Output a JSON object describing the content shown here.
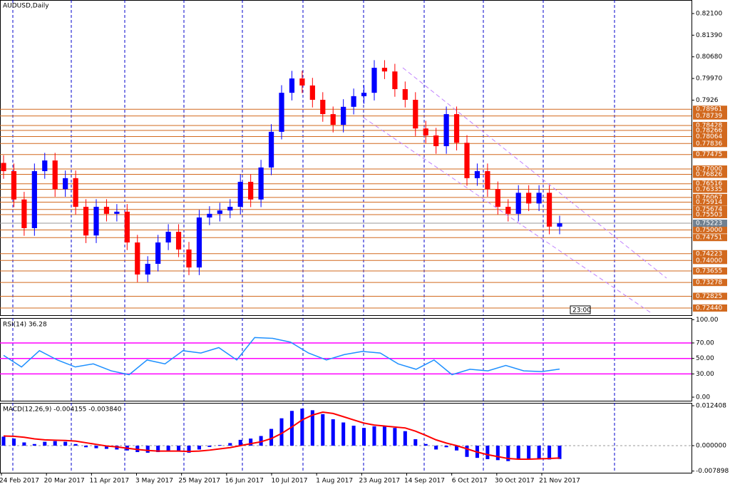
{
  "chart_data": [
    {
      "type": "candlestick",
      "title": "AUDUSD,Daily",
      "clock": "23:00",
      "open": [
        0.772,
        0.7693,
        0.76,
        0.7506,
        0.7693,
        0.7728,
        0.7634,
        0.767,
        0.7576,
        0.7482,
        0.7576,
        0.7553,
        0.756,
        0.7459,
        0.7354,
        0.7389,
        0.7459,
        0.7494,
        0.7436,
        0.7377,
        0.7541,
        0.7553,
        0.7564,
        0.7576,
        0.7658,
        0.76,
        0.7705,
        0.7822,
        0.795,
        0.7997,
        0.7974,
        0.7927,
        0.788,
        0.7845,
        0.7904,
        0.7939,
        0.795,
        0.8032,
        0.802,
        0.7962,
        0.7927,
        0.7833,
        0.781,
        0.7775,
        0.788,
        0.7786,
        0.767,
        0.7693,
        0.7634,
        0.7576,
        0.7553,
        0.7622,
        0.7587,
        0.7622,
        0.7511
      ],
      "high": [
        0.7745,
        0.7718,
        0.7625,
        0.7718,
        0.7753,
        0.7753,
        0.7695,
        0.7695,
        0.7601,
        0.7601,
        0.7601,
        0.7585,
        0.7585,
        0.7484,
        0.7414,
        0.7484,
        0.7519,
        0.7519,
        0.7461,
        0.7566,
        0.7578,
        0.7589,
        0.7601,
        0.7683,
        0.7683,
        0.773,
        0.7847,
        0.7975,
        0.8022,
        0.8022,
        0.7999,
        0.7952,
        0.7905,
        0.7929,
        0.7964,
        0.7975,
        0.8057,
        0.8057,
        0.8045,
        0.7987,
        0.7952,
        0.7858,
        0.7835,
        0.7905,
        0.7905,
        0.7811,
        0.7718,
        0.7718,
        0.7659,
        0.7601,
        0.7647,
        0.7647,
        0.7647,
        0.7647,
        0.7547
      ],
      "low": [
        0.7668,
        0.7575,
        0.7481,
        0.7481,
        0.7668,
        0.7609,
        0.7609,
        0.7551,
        0.7457,
        0.7457,
        0.7528,
        0.7528,
        0.7434,
        0.7329,
        0.7329,
        0.7364,
        0.7434,
        0.7411,
        0.7352,
        0.7352,
        0.7516,
        0.7528,
        0.7539,
        0.7551,
        0.7575,
        0.7575,
        0.768,
        0.7797,
        0.7925,
        0.7949,
        0.7902,
        0.7855,
        0.782,
        0.782,
        0.7879,
        0.7914,
        0.7925,
        0.7995,
        0.7937,
        0.7902,
        0.7808,
        0.7785,
        0.775,
        0.775,
        0.7761,
        0.7645,
        0.7645,
        0.7609,
        0.7551,
        0.7528,
        0.7528,
        0.7562,
        0.7562,
        0.7486,
        0.7486
      ],
      "close": [
        0.7693,
        0.76,
        0.7506,
        0.7693,
        0.7728,
        0.7634,
        0.767,
        0.7576,
        0.7482,
        0.7576,
        0.7553,
        0.756,
        0.7459,
        0.7354,
        0.7389,
        0.7459,
        0.7494,
        0.7436,
        0.7377,
        0.7541,
        0.7553,
        0.7564,
        0.7576,
        0.7658,
        0.76,
        0.7705,
        0.7822,
        0.795,
        0.7997,
        0.7974,
        0.7927,
        0.788,
        0.7845,
        0.7904,
        0.7939,
        0.795,
        0.8032,
        0.802,
        0.7962,
        0.7927,
        0.7833,
        0.781,
        0.7775,
        0.788,
        0.7786,
        0.767,
        0.7693,
        0.7634,
        0.7576,
        0.7553,
        0.7622,
        0.7587,
        0.7622,
        0.7511,
        0.7522
      ],
      "up_color": "#0000ff",
      "down_color": "#ff0000",
      "ylim": [
        0.72206,
        0.82544
      ],
      "yticks": [
        {
          "value": 0.821,
          "label": "0.82100"
        },
        {
          "value": 0.8139,
          "label": "0.81390"
        },
        {
          "value": 0.8068,
          "label": "0.80680"
        },
        {
          "value": 0.7997,
          "label": "0.79970"
        },
        0.7926
      ],
      "levels": [
        0.78961,
        0.78739,
        0.78428,
        0.78266,
        0.78064,
        0.77836,
        0.77475,
        {
          "value": 0.77,
          "label": "0.77000"
        },
        0.76826,
        0.76516,
        0.76335,
        0.76067,
        0.75914,
        0.75674,
        0.75503,
        {
          "value": 0.75,
          "label": "0.75000"
        },
        0.74751,
        0.74223,
        {
          "value": 0.74,
          "label": "0.74000"
        },
        0.73655,
        0.73278,
        0.72825,
        {
          "value": 0.7244,
          "label": "0.72440"
        }
      ],
      "level_color": "#d2691e",
      "current_price": 0.75223
    },
    {
      "type": "line",
      "title": "RSI(14) 36.28",
      "values": [
        54,
        39,
        60,
        48,
        39,
        43,
        34,
        29,
        48,
        43,
        60,
        57,
        64,
        48,
        77,
        76,
        71,
        57,
        48,
        55,
        59,
        57,
        43,
        36,
        48,
        29,
        36,
        34,
        41,
        34,
        33,
        36.28
      ],
      "color": "#1e90ff",
      "ylim": [
        -4.6,
        102.2
      ],
      "yticks": [
        {
          "value": 100,
          "label": "100.00"
        },
        {
          "value": 70,
          "label": "70.00"
        },
        {
          "value": 50,
          "label": "50.00"
        },
        {
          "value": 30,
          "label": "30.00"
        },
        {
          "value": 0,
          "label": "0.00"
        }
      ],
      "levels": [
        70,
        50,
        30
      ],
      "level_color": "#ff00ff"
    },
    {
      "type": "macd",
      "title": "MACD(12,26,9) -0.004155 -0.003840",
      "histogram": [
        0.0028,
        0.0022,
        0.001,
        0.0005,
        0.0012,
        0.0014,
        0.0012,
        0.0005,
        -0.0005,
        -0.0008,
        -0.001,
        -0.0012,
        -0.0015,
        -0.002,
        -0.0022,
        -0.002,
        -0.0016,
        -0.0018,
        -0.0022,
        -0.0012,
        -0.0004,
        0.0002,
        0.0008,
        0.0018,
        0.0022,
        0.003,
        0.0052,
        0.0085,
        0.0108,
        0.0115,
        0.011,
        0.0098,
        0.0082,
        0.0072,
        0.0062,
        0.0055,
        0.006,
        0.0062,
        0.0055,
        0.0045,
        0.002,
        0.0005,
        -0.0012,
        -0.0005,
        -0.0015,
        -0.0035,
        -0.0038,
        -0.0042,
        -0.0045,
        -0.0048,
        -0.004,
        -0.0042,
        -0.004,
        -0.0043,
        -0.004155
      ],
      "signal": [
        0.003,
        0.0029,
        0.0026,
        0.0021,
        0.0018,
        0.0017,
        0.0016,
        0.0014,
        0.0009,
        0.0004,
        -0.0001,
        -0.0004,
        -0.0008,
        -0.0012,
        -0.0015,
        -0.0017,
        -0.0017,
        -0.0017,
        -0.0018,
        -0.0017,
        -0.0014,
        -0.001,
        -0.0006,
        0,
        0.0006,
        0.0012,
        0.0022,
        0.0038,
        0.0058,
        0.008,
        0.0095,
        0.0104,
        0.01,
        0.009,
        0.008,
        0.007,
        0.0064,
        0.0061,
        0.0058,
        0.0055,
        0.0045,
        0.0032,
        0.0018,
        0.0008,
        0,
        -0.001,
        -0.002,
        -0.0028,
        -0.0034,
        -0.004,
        -0.0042,
        -0.0042,
        -0.0041,
        -0.004,
        -0.00384
      ],
      "histogram_color": "#0000ff",
      "signal_color": "#ff0000",
      "ylim": [
        -0.00842,
        0.013294
      ],
      "yticks": [
        {
          "value": 0.012408,
          "label": "0.012408"
        },
        {
          "value": 0,
          "label": "0.000000"
        },
        -0.007898
      ],
      "categories": [
        "24 Feb 2017",
        "20 Mar 2017",
        "11 Apr 2017",
        "3 May 2017",
        "25 May 2017",
        "16 Jun 2017",
        "10 Jul 2017",
        "1 Aug 2017",
        "23 Aug 2017",
        "14 Sep 2017",
        "6 Oct 2017",
        "30 Oct 2017",
        "21 Nov 2017"
      ]
    }
  ]
}
